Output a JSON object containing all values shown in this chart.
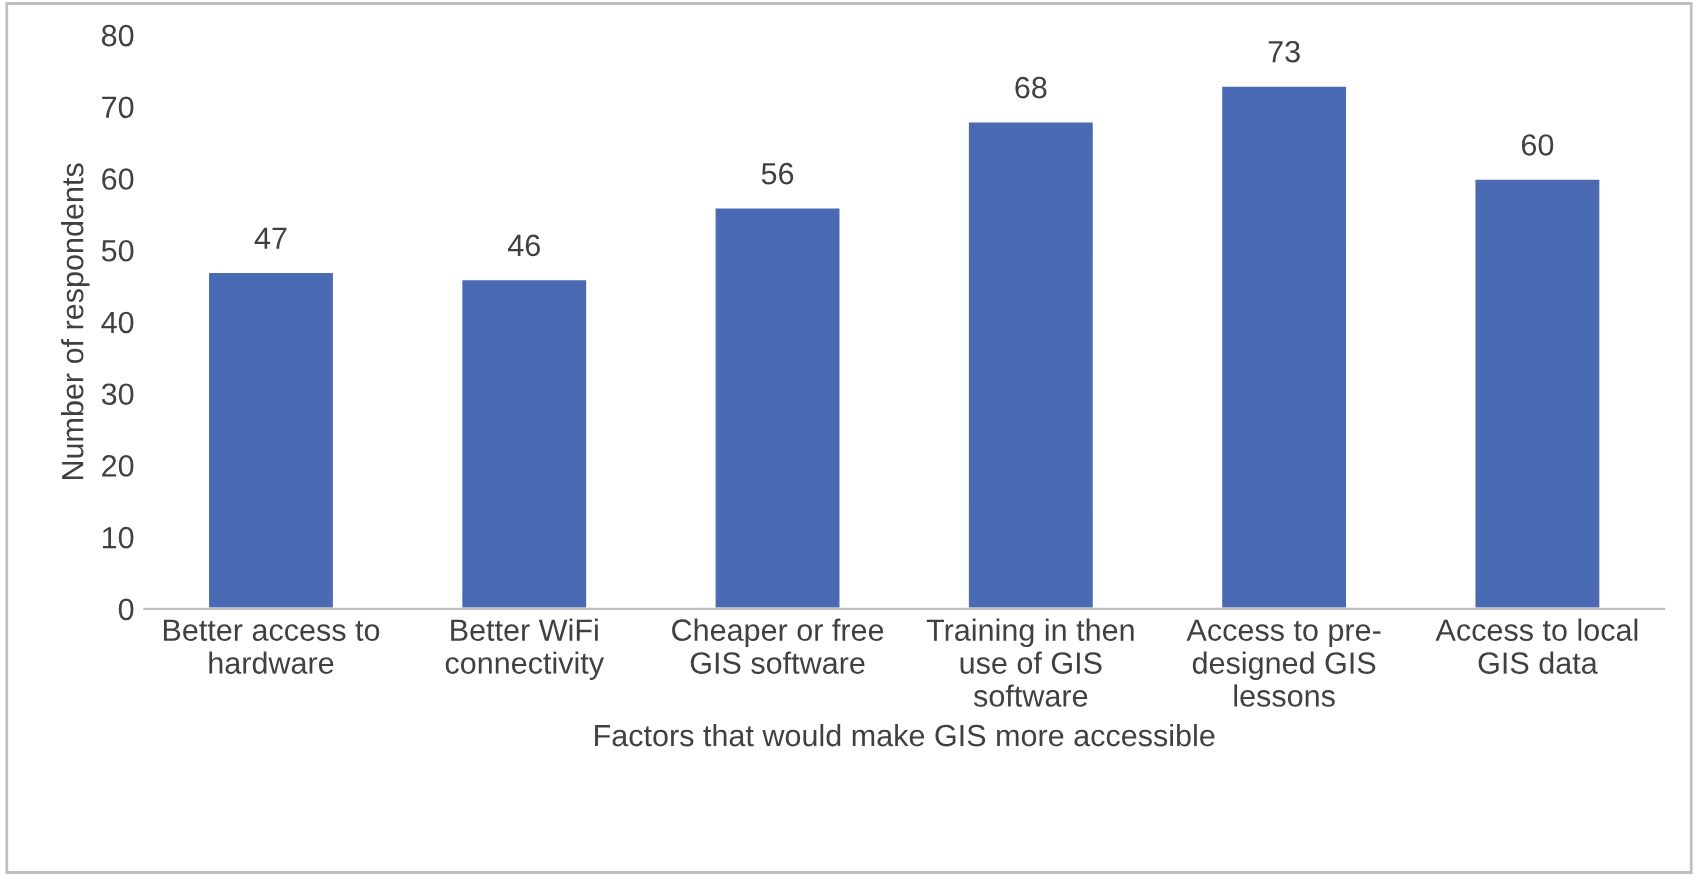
{
  "chart_data": {
    "type": "bar",
    "xlabel": "Factors that would make GIS more accessible",
    "ylabel": "Number of respondents",
    "categories": [
      "Better access to\nhardware",
      "Better WiFi\nconnectivity",
      "Cheaper or free\nGIS software",
      "Training in then\nuse of GIS\nsoftware",
      "Access to pre-\ndesigned GIS\nlessons",
      "Access to local\nGIS data"
    ],
    "values": [
      47,
      46,
      56,
      68,
      73,
      60
    ],
    "color": "#4a6ab3",
    "ylim": [
      0,
      80
    ],
    "yticks": [
      0,
      10,
      20,
      30,
      40,
      50,
      60,
      70,
      80
    ],
    "grid": false,
    "data_labels": true
  }
}
